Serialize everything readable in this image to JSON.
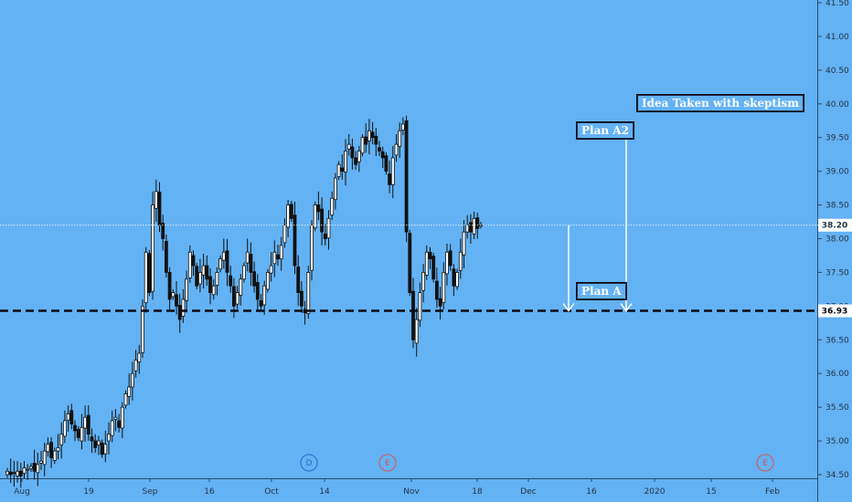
{
  "chart_data": {
    "type": "candlestick",
    "x_axis_labels": [
      "Aug",
      "19",
      "Sep",
      "16",
      "Oct",
      "14",
      "Nov",
      "18",
      "Dec",
      "16",
      "2020",
      "15",
      "Feb"
    ],
    "y_axis_ticks": [
      "41.50",
      "41.00",
      "40.50",
      "40.00",
      "39.50",
      "39.00",
      "38.50",
      "38.00",
      "37.50",
      "37.00",
      "36.50",
      "36.00",
      "35.50",
      "35.00",
      "34.50"
    ],
    "ylim": [
      34.5,
      41.5
    ],
    "price_line": {
      "value": "38.20",
      "color": "#ffffff"
    },
    "support_line": {
      "value": "36.93",
      "color": "#0a0a14",
      "style": "dashed"
    },
    "annotations": [
      {
        "text": "Idea Taken with skeptism"
      },
      {
        "text": "Plan A2"
      },
      {
        "text": "Plan A"
      }
    ],
    "events": [
      {
        "letter": "D",
        "color": "#2a66c8"
      },
      {
        "letter": "E",
        "color": "#d9534f"
      },
      {
        "letter": "E",
        "color": "#d9534f"
      }
    ],
    "candles_close": [
      34.55,
      34.5,
      34.52,
      34.55,
      34.48,
      34.6,
      34.58,
      34.62,
      34.55,
      34.65,
      34.7,
      34.85,
      34.95,
      34.75,
      34.85,
      34.9,
      35.1,
      35.3,
      35.4,
      35.25,
      35.15,
      35.05,
      35.2,
      35.35,
      35.1,
      35.0,
      34.9,
      35.0,
      34.8,
      34.95,
      35.1,
      35.3,
      35.35,
      35.2,
      35.5,
      35.7,
      35.8,
      36.0,
      36.2,
      36.3,
      37.0,
      37.8,
      37.2,
      38.5,
      38.7,
      38.2,
      38.0,
      37.5,
      37.1,
      37.2,
      37.0,
      36.8,
      37.1,
      37.4,
      37.8,
      37.6,
      37.3,
      37.5,
      37.6,
      37.4,
      37.2,
      37.3,
      37.5,
      37.7,
      37.8,
      37.5,
      37.3,
      37.0,
      37.2,
      37.4,
      37.6,
      37.8,
      37.5,
      37.3,
      37.1,
      37.0,
      37.3,
      37.5,
      37.6,
      37.8,
      37.7,
      37.9,
      38.2,
      38.5,
      38.3,
      37.6,
      37.2,
      37.0,
      36.9,
      37.5,
      38.2,
      38.5,
      38.4,
      38.1,
      38.0,
      38.3,
      38.6,
      38.9,
      39.1,
      39.0,
      39.3,
      39.4,
      39.2,
      39.1,
      39.3,
      39.5,
      39.4,
      39.6,
      39.5,
      39.4,
      39.3,
      39.2,
      39.0,
      38.8,
      39.2,
      39.4,
      39.6,
      39.7,
      38.1,
      37.2,
      36.5,
      36.8,
      37.2,
      37.5,
      37.8,
      37.7,
      37.4,
      37.1,
      37.0,
      37.5,
      37.8,
      37.6,
      37.3,
      37.5,
      37.8,
      38.1,
      38.2,
      38.1,
      38.3,
      38.15,
      38.2
    ]
  }
}
